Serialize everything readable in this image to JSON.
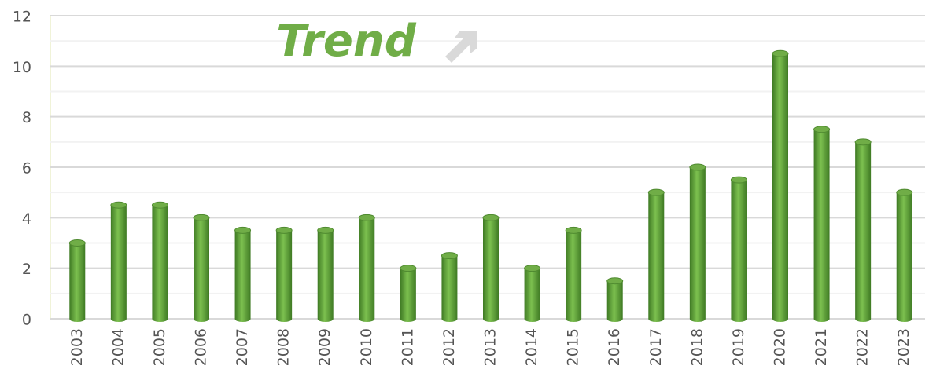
{
  "chart_data": {
    "type": "bar",
    "title": "Trend",
    "categories": [
      "2003",
      "2004",
      "2005",
      "2006",
      "2007",
      "2008",
      "2009",
      "2010",
      "2011",
      "2012",
      "2013",
      "2014",
      "2015",
      "2016",
      "2017",
      "2018",
      "2019",
      "2020",
      "2021",
      "2022",
      "2023"
    ],
    "values": [
      3,
      4.5,
      4.5,
      4,
      3.5,
      3.5,
      3.5,
      4,
      2,
      2.5,
      4,
      2,
      3.5,
      1.5,
      5,
      6,
      5.5,
      10.5,
      7.5,
      7,
      5
    ],
    "color": "#70ad47",
    "ylim": [
      0,
      12
    ],
    "yticks": [
      0,
      2,
      4,
      6,
      8,
      10,
      12
    ],
    "minor_yticks": [
      1,
      3,
      5,
      7,
      9,
      11
    ],
    "grid": true
  }
}
